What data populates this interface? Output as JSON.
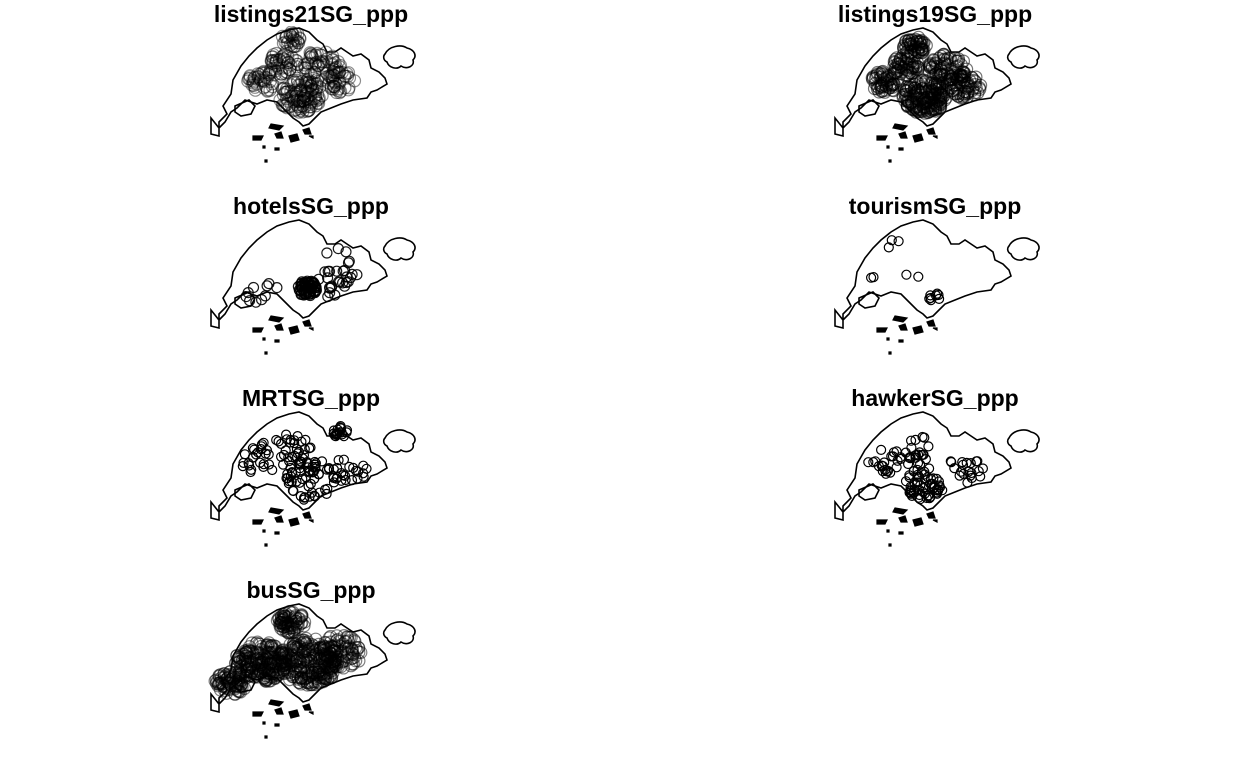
{
  "figure": {
    "panels": [
      {
        "id": "p1",
        "title": "listings21SG_ppp"
      },
      {
        "id": "p2",
        "title": "listings19SG_ppp"
      },
      {
        "id": "p3",
        "title": "hotelsSG_ppp"
      },
      {
        "id": "p4",
        "title": "tourismSG_ppp"
      },
      {
        "id": "p5",
        "title": "MRTSG_ppp"
      },
      {
        "id": "p6",
        "title": "hawkerSG_ppp"
      },
      {
        "id": "p7",
        "title": "busSG_ppp"
      }
    ]
  }
}
